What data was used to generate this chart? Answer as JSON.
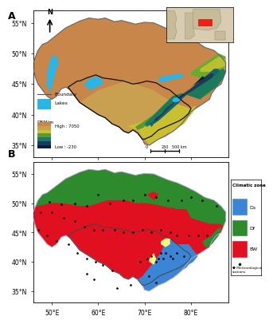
{
  "title_A": "A",
  "title_B": "B",
  "xlim": [
    46,
    88
  ],
  "ylim": [
    33,
    57
  ],
  "xticks": [
    50,
    60,
    70,
    80
  ],
  "yticks": [
    35,
    40,
    45,
    50,
    55
  ],
  "xlabel_ticks": [
    "50°E",
    "60°E",
    "70°E",
    "80°E"
  ],
  "ylabel_ticks": [
    "35°N",
    "40°N",
    "45°N",
    "50°N",
    "55°N"
  ],
  "lake_color": "#29b5e8",
  "boundary_color_A": "#555555",
  "inner_boundary_color": "#111111",
  "background_outside": "#ffffff",
  "background_map_A": "#c8864a",
  "climate_zones": {
    "Ds": {
      "color": "#3a86d4"
    },
    "Df": {
      "color": "#2d8a2d"
    },
    "BW": {
      "color": "#e01020"
    }
  },
  "yellow_zone_color": "#f5f580",
  "station_color": "#000000",
  "scale_bar_text": "0   250  500 km",
  "fig_bg": "#ffffff",
  "legend_B_title": "Climatic zone",
  "legend_B_station": "Meteorological stations"
}
